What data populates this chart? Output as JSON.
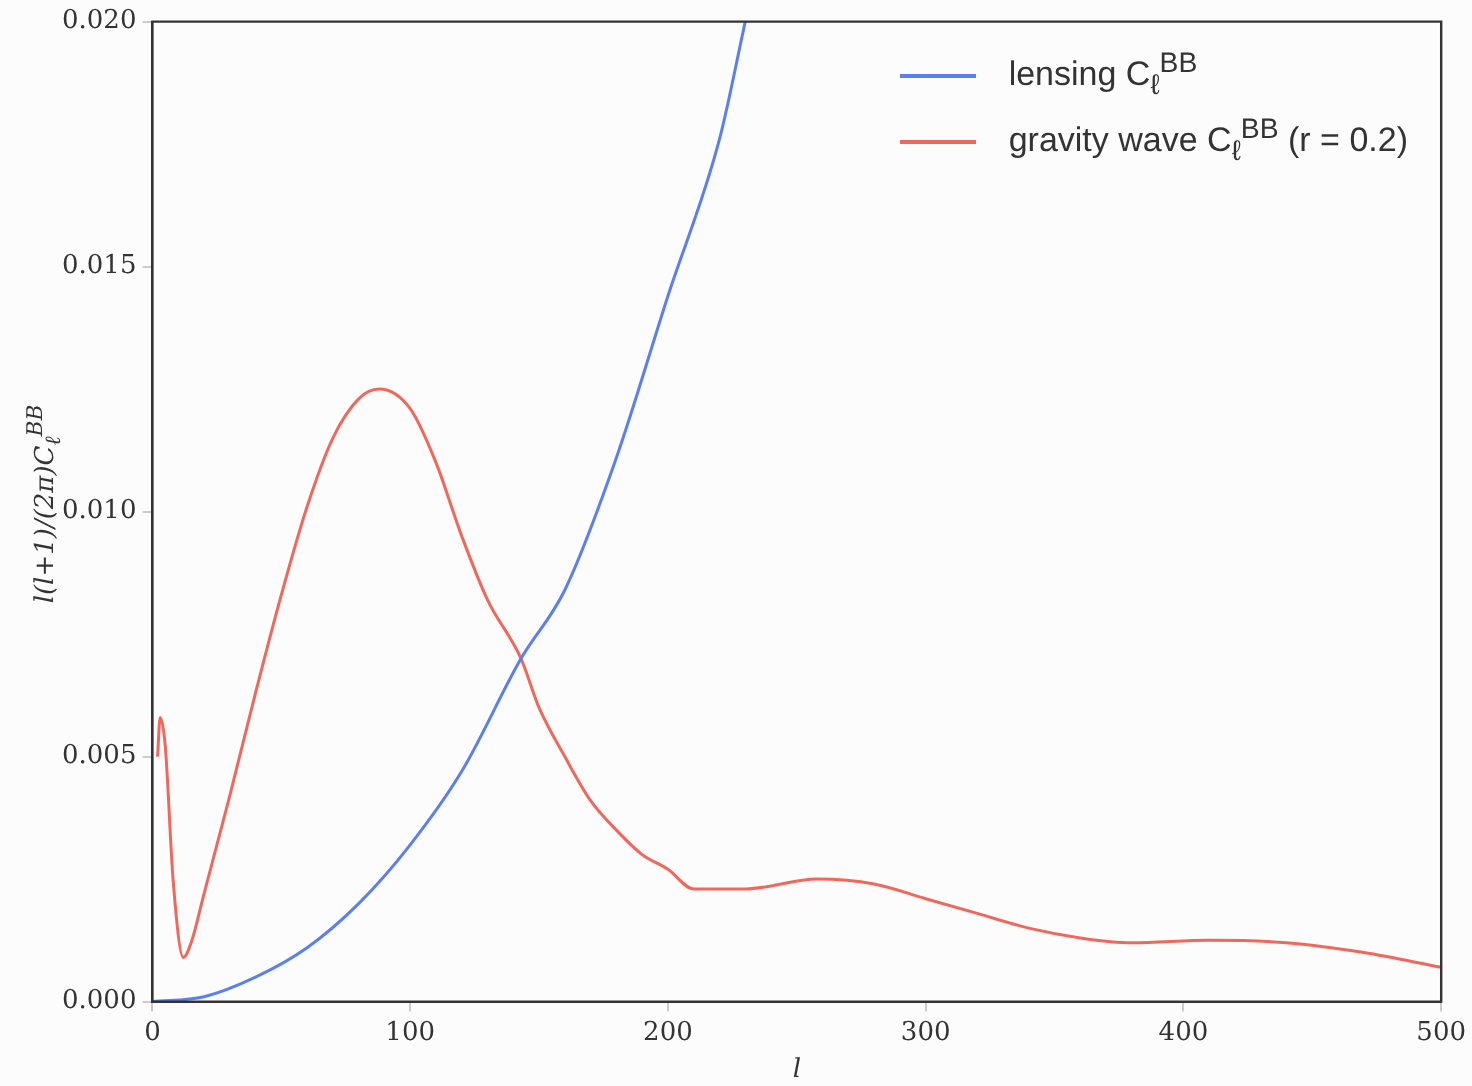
{
  "chart_data": {
    "type": "line",
    "xlabel": "l",
    "ylabel": "l(l+1)/(2π)C$_{ℓ}$$^{BB}$",
    "xlim": [
      0,
      500
    ],
    "xticks": [
      0,
      100,
      200,
      300,
      400,
      500
    ],
    "ylim": [
      0,
      0.02
    ],
    "yticks": [
      {
        "value": 0,
        "label": "0.000"
      },
      {
        "value": 0.005,
        "label": "0.005"
      },
      {
        "value": 0.01,
        "label": "0.010"
      },
      {
        "value": 0.015,
        "label": "0.015"
      },
      {
        "value": 0.02,
        "label": "0.020"
      }
    ],
    "grid": false,
    "legend": "top right",
    "marker": "none",
    "line_style": "solid",
    "series": [
      {
        "name": "lensing C$_{ℓ}$$^{BB}$",
        "color": "#5b7ff0",
        "x": [
          0,
          20,
          40,
          60,
          80,
          100,
          120,
          143,
          160,
          180,
          200,
          220,
          230
        ],
        "values": [
          0,
          0.0001,
          0.0005,
          0.0011,
          0.002,
          0.0032,
          0.0047,
          0.007,
          0.0084,
          0.0111,
          0.0144,
          0.0176,
          0.02
        ]
      },
      {
        "name": "gravity wave C$_{ℓ}$$^{BB}$ (r = 0.2)",
        "color": "#f0675c",
        "x": [
          2,
          3,
          5,
          8,
          12,
          15,
          20,
          30,
          40,
          50,
          60,
          70,
          80,
          88,
          100,
          110,
          120,
          130,
          143,
          150,
          160,
          170,
          180,
          190,
          200,
          210,
          230,
          258,
          280,
          300,
          320,
          340,
          360,
          380,
          410,
          440,
          470,
          500
        ],
        "values": [
          0.005,
          0.0058,
          0.0052,
          0.0025,
          0.0009,
          0.0012,
          0.0022,
          0.0042,
          0.0063,
          0.0083,
          0.0101,
          0.0115,
          0.0123,
          0.0125,
          0.0121,
          0.011,
          0.0095,
          0.0082,
          0.007,
          0.006,
          0.005,
          0.0041,
          0.0035,
          0.003,
          0.0027,
          0.0023,
          0.0023,
          0.0025,
          0.0024,
          0.0021,
          0.0018,
          0.0015,
          0.0013,
          0.0012,
          0.00125,
          0.0012,
          0.001,
          0.0007
        ]
      }
    ]
  }
}
